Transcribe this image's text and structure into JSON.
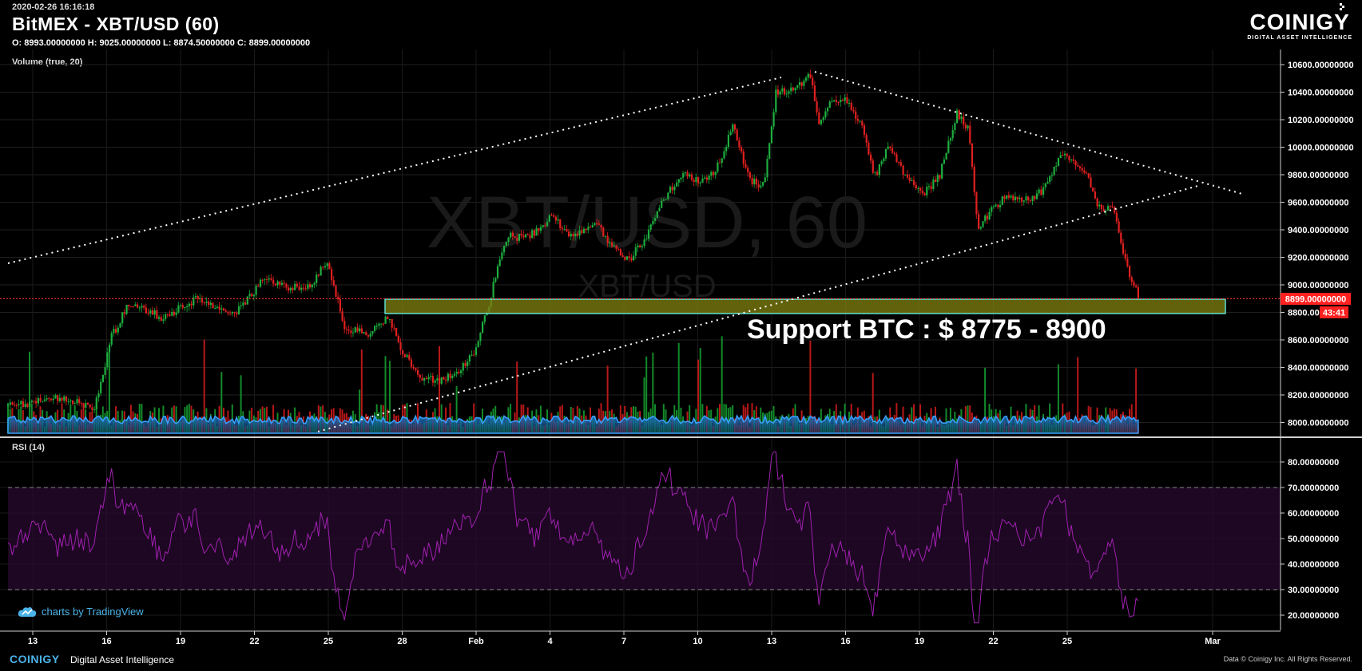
{
  "header": {
    "timestamp": "2020-02-26 16:16:18",
    "title": "BitMEX - XBT/USD (60)",
    "ohlc": "O: 8993.00000000 H: 9025.00000000 L: 8874.50000000 C: 8899.00000000"
  },
  "brand": {
    "name": "COINIGY",
    "tagline": "DIGITAL ASSET INTELLIGENCE"
  },
  "watermark": {
    "main": "XBT/USD, 60",
    "sub": "XBT/USD"
  },
  "annotation": "Support BTC : $ 8775 - 8900",
  "price_badge": {
    "value": "8899.00000000",
    "countdown": "43:41"
  },
  "footer": {
    "logo": "COINIGY",
    "subtitle": "Digital Asset Intelligence",
    "copyright": "Data © Coinigy Inc.  All Rights Reserved.",
    "tradingview": "charts by TradingView"
  },
  "colors": {
    "up": "#26a69a",
    "down": "#ef5350",
    "volume_ma": "#1e90ff",
    "rsi": "#9b2fae",
    "zone": "#8b8b1a",
    "accent": "#4ab3e8"
  },
  "chart_data": [
    {
      "type": "candlestick",
      "title": "BitMEX - XBT/USD (60)",
      "x_ticks": [
        "13",
        "16",
        "19",
        "22",
        "25",
        "28",
        "Feb",
        "4",
        "7",
        "10",
        "13",
        "16",
        "19",
        "22",
        "25",
        "Mar"
      ],
      "y_ticks": [
        "10600.00000000",
        "10400.00000000",
        "10200.00000000",
        "10000.00000000",
        "9800.00000000",
        "9600.00000000",
        "9400.00000000",
        "9200.00000000",
        "9000.00000000",
        "8800.00000000",
        "8600.00000000",
        "8400.00000000",
        "8200.00000000",
        "8000.00000000"
      ],
      "ylim": [
        7900,
        10680
      ],
      "last_price": 8899,
      "price_path": [
        [
          0,
          8120
        ],
        [
          3,
          8180
        ],
        [
          5,
          8100
        ],
        [
          6,
          8620
        ],
        [
          7,
          8870
        ],
        [
          9,
          8760
        ],
        [
          11,
          8900
        ],
        [
          13,
          8780
        ],
        [
          15,
          9060
        ],
        [
          16,
          8980
        ],
        [
          17.5,
          8980
        ],
        [
          18.5,
          9180
        ],
        [
          19.5,
          8680
        ],
        [
          21,
          8640
        ],
        [
          22,
          8770
        ],
        [
          23,
          8480
        ],
        [
          24,
          8330
        ],
        [
          25,
          8300
        ],
        [
          26,
          8350
        ],
        [
          27,
          8520
        ],
        [
          27.8,
          8820
        ],
        [
          28.3,
          9100
        ],
        [
          29,
          9360
        ],
        [
          30,
          9340
        ],
        [
          31,
          9420
        ],
        [
          31.5,
          9530
        ],
        [
          32.5,
          9350
        ],
        [
          34,
          9460
        ],
        [
          35,
          9280
        ],
        [
          36,
          9180
        ],
        [
          37,
          9350
        ],
        [
          38,
          9620
        ],
        [
          39,
          9800
        ],
        [
          40,
          9760
        ],
        [
          41,
          9820
        ],
        [
          42,
          10150
        ],
        [
          43,
          9750
        ],
        [
          43.8,
          9730
        ],
        [
          44.5,
          10400
        ],
        [
          45.5,
          10420
        ],
        [
          46.5,
          10520
        ],
        [
          47,
          10150
        ],
        [
          47.5,
          10300
        ],
        [
          48.5,
          10340
        ],
        [
          49.5,
          10150
        ],
        [
          50.2,
          9780
        ],
        [
          51,
          10000
        ],
        [
          52,
          9800
        ],
        [
          53,
          9650
        ],
        [
          54,
          9800
        ],
        [
          55,
          10250
        ],
        [
          55.7,
          10120
        ],
        [
          56.2,
          9400
        ],
        [
          57,
          9550
        ],
        [
          58,
          9650
        ],
        [
          59,
          9620
        ],
        [
          60,
          9680
        ],
        [
          61,
          9960
        ],
        [
          62,
          9850
        ],
        [
          62.5,
          9800
        ],
        [
          63.2,
          9550
        ],
        [
          64,
          9580
        ],
        [
          65,
          9050
        ],
        [
          65.6,
          8899
        ]
      ],
      "volume_ma_level": 60
    },
    {
      "type": "line",
      "title": "RSI (14)",
      "y_ticks": [
        "80.00000000",
        "70.00000000",
        "60.00000000",
        "50.00000000",
        "40.00000000",
        "30.00000000",
        "20.00000000"
      ],
      "ylim": [
        15,
        85
      ],
      "bands": [
        30,
        70
      ]
    }
  ]
}
